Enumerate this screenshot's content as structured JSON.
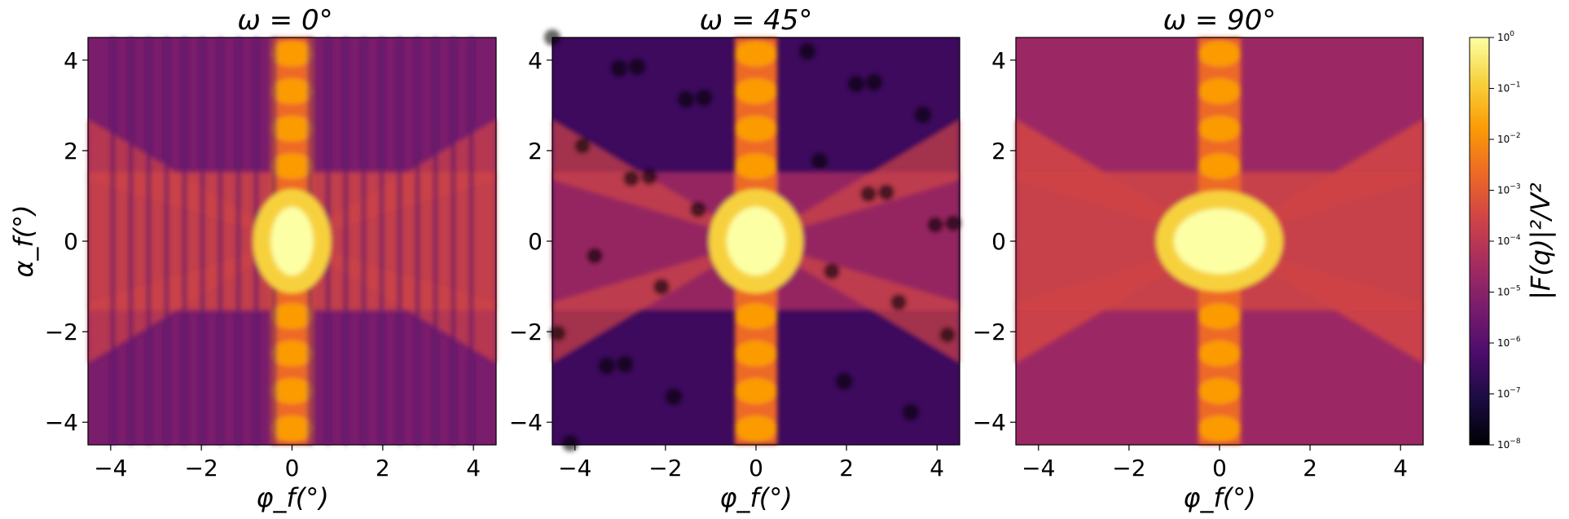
{
  "chart_data": [
    {
      "type": "heatmap",
      "title": "ω = 0°",
      "xlabel": "φ_f(°)",
      "ylabel": "α_f(°)",
      "xlim": [
        -4.5,
        4.5
      ],
      "ylim": [
        -4.5,
        4.5
      ],
      "xticks": [
        -4,
        -2,
        0,
        2,
        4
      ],
      "yticks": [
        -4,
        -2,
        0,
        2,
        4
      ],
      "xtick_labels": [
        "−4",
        "−2",
        "0",
        "2",
        "4"
      ],
      "ytick_labels": [
        "−4",
        "−2",
        "0",
        "2",
        "4"
      ],
      "omega_deg": 0,
      "colormap": "inferno",
      "scale": "log",
      "peak": {
        "x": 0,
        "y": 0,
        "value": 1
      }
    },
    {
      "type": "heatmap",
      "title": "ω = 45°",
      "xlabel": "φ_f(°)",
      "ylabel": "",
      "xlim": [
        -4.5,
        4.5
      ],
      "ylim": [
        -4.5,
        4.5
      ],
      "xticks": [
        -4,
        -2,
        0,
        2,
        4
      ],
      "yticks": [
        -4,
        -2,
        0,
        2,
        4
      ],
      "xtick_labels": [
        "−4",
        "−2",
        "0",
        "2",
        "4"
      ],
      "ytick_labels": [
        "−4",
        "−2",
        "0",
        "2",
        "4"
      ],
      "omega_deg": 45,
      "colormap": "inferno",
      "scale": "log",
      "peak": {
        "x": 0,
        "y": 0,
        "value": 1
      }
    },
    {
      "type": "heatmap",
      "title": "ω = 90°",
      "xlabel": "φ_f(°)",
      "ylabel": "",
      "xlim": [
        -4.5,
        4.5
      ],
      "ylim": [
        -4.5,
        4.5
      ],
      "xticks": [
        -4,
        -2,
        0,
        2,
        4
      ],
      "yticks": [
        -4,
        -2,
        0,
        2,
        4
      ],
      "xtick_labels": [
        "−4",
        "−2",
        "0",
        "2",
        "4"
      ],
      "ytick_labels": [
        "−4",
        "−2",
        "0",
        "2",
        "4"
      ],
      "omega_deg": 90,
      "colormap": "inferno",
      "scale": "log",
      "peak": {
        "x": 0,
        "y": 0,
        "value": 1
      }
    }
  ],
  "colorbar": {
    "label": "|F(q)|²/V²",
    "scale": "log",
    "range": [
      1e-08,
      1
    ],
    "tick_exponents": [
      0,
      -1,
      -2,
      -3,
      -4,
      -5,
      -6,
      -7,
      -8
    ]
  },
  "colors": {
    "inferno_stops": [
      "#000004",
      "#1b0c41",
      "#4a0c6b",
      "#781c6d",
      "#a52c60",
      "#cf4446",
      "#ed6925",
      "#fb9b06",
      "#f7d13d",
      "#fcffa4"
    ]
  }
}
